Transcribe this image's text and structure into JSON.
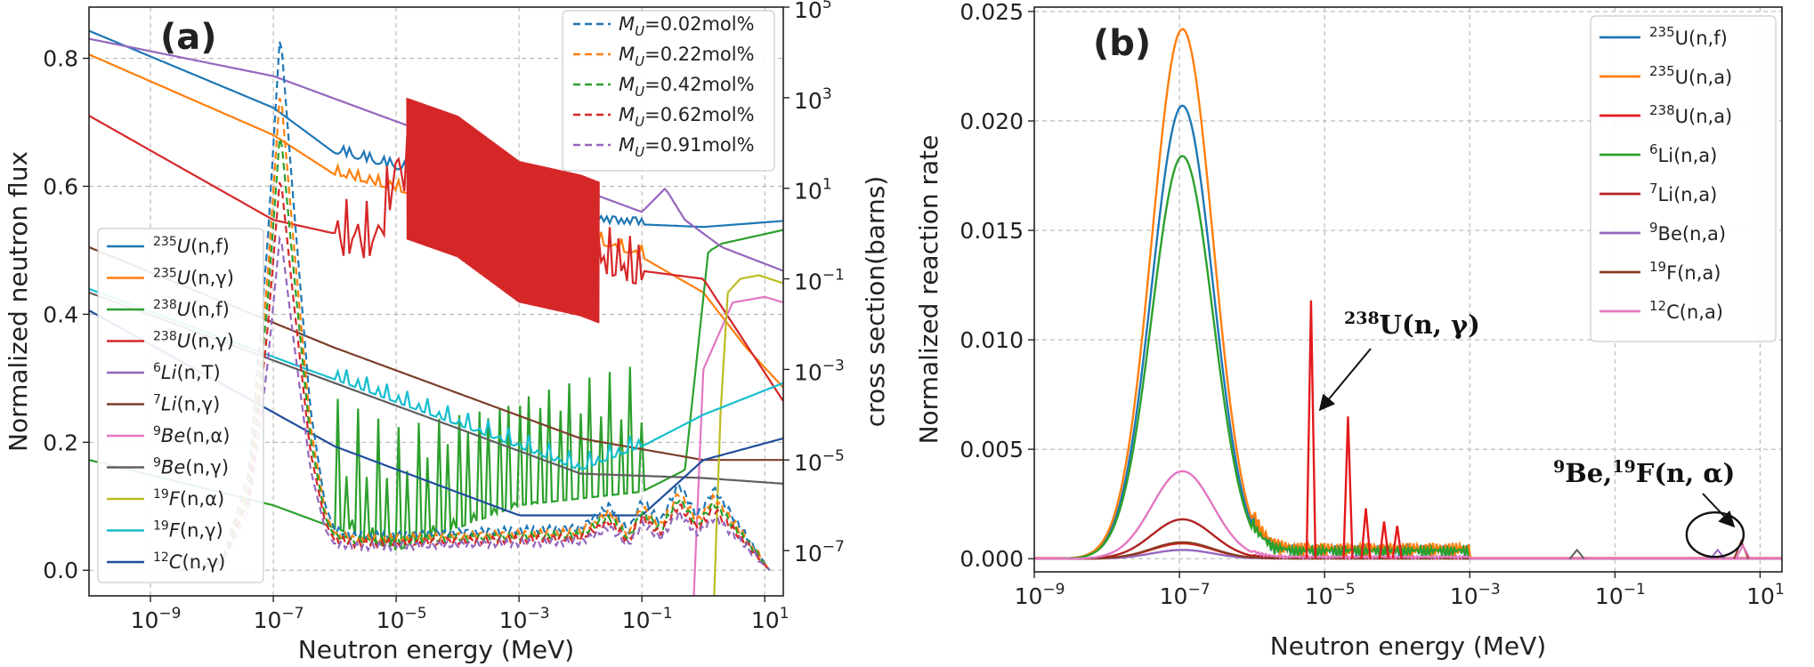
{
  "chart_data": [
    {
      "type": "line",
      "panel_label": "(a)",
      "xlabel": "Neutron energy (MeV)",
      "ylabel": "Normalized neutron flux",
      "ylabel_right": "cross section(barns)",
      "xscale": "log",
      "xlim": [
        1e-10,
        20
      ],
      "ylim": [
        -0.04,
        0.88
      ],
      "y2scale": "log",
      "y2lim": [
        1e-08,
        100000.0
      ],
      "grid": true,
      "x_ticks": [
        {
          "value": 1e-09,
          "base": "10",
          "exp": "−9"
        },
        {
          "value": 1e-07,
          "base": "10",
          "exp": "−7"
        },
        {
          "value": 1e-05,
          "base": "10",
          "exp": "−5"
        },
        {
          "value": 0.001,
          "base": "10",
          "exp": "−3"
        },
        {
          "value": 0.1,
          "base": "10",
          "exp": "−1"
        },
        {
          "value": 10,
          "base": "10",
          "exp": "1"
        }
      ],
      "y_ticks": [
        {
          "value": 0.0,
          "label": "0.0"
        },
        {
          "value": 0.2,
          "label": "0.2"
        },
        {
          "value": 0.4,
          "label": "0.4"
        },
        {
          "value": 0.6,
          "label": "0.6"
        },
        {
          "value": 0.8,
          "label": "0.8"
        }
      ],
      "y2_ticks": [
        {
          "value": 100000.0,
          "base": "10",
          "exp": "5"
        },
        {
          "value": 1000.0,
          "base": "10",
          "exp": "3"
        },
        {
          "value": 10.0,
          "base": "10",
          "exp": "1"
        },
        {
          "value": 0.1,
          "base": "10",
          "exp": "−1"
        },
        {
          "value": 0.001,
          "base": "10",
          "exp": "−3"
        },
        {
          "value": 1e-05,
          "base": "10",
          "exp": "−5"
        },
        {
          "value": 1e-07,
          "base": "10",
          "exp": "−7"
        }
      ],
      "flux_series": [
        {
          "name": "M_U=0.02mol%",
          "prefix": "M",
          "sub": "U",
          "suffix": "=0.02mol%",
          "color": "#1f77b4",
          "scale": 0.845
        },
        {
          "name": "M_U=0.22mol%",
          "prefix": "M",
          "sub": "U",
          "suffix": "=0.22mol%",
          "color": "#ff7f0e",
          "scale": 0.755
        },
        {
          "name": "M_U=0.42mol%",
          "prefix": "M",
          "sub": "U",
          "suffix": "=0.42mol%",
          "color": "#2ca02c",
          "scale": 0.69
        },
        {
          "name": "M_U=0.62mol%",
          "prefix": "M",
          "sub": "U",
          "suffix": "=0.62mol%",
          "color": "#d62728",
          "scale": 0.62
        },
        {
          "name": "M_U=0.91mol%",
          "prefix": "M",
          "sub": "U",
          "suffix": "=0.91mol%",
          "color": "#9467bd",
          "scale": 0.53
        }
      ],
      "flux_shape": {
        "x": [
          3e-09,
          1.5e-08,
          4e-08,
          8e-08,
          1.3e-07,
          2e-07,
          4e-07,
          7e-07,
          1e-06,
          2e-06,
          1e-05,
          0.0001,
          0.001,
          0.01,
          0.03,
          0.06,
          0.1,
          0.2,
          0.4,
          0.8,
          1.5,
          3,
          6,
          12
        ],
        "y": [
          0.0,
          0.02,
          0.18,
          0.6,
          1.0,
          0.72,
          0.3,
          0.12,
          0.075,
          0.064,
          0.065,
          0.07,
          0.074,
          0.078,
          0.12,
          0.07,
          0.13,
          0.09,
          0.16,
          0.1,
          0.15,
          0.1,
          0.05,
          0.0
        ]
      },
      "cross_section_series": [
        {
          "label_pre": "235",
          "label_mid": "U",
          "label_post": "(n,f)",
          "color": "#1f77b4",
          "x": [
            1e-10,
            1e-07,
            1e-06,
            0.01,
            0.03,
            1,
            20
          ],
          "y": [
            30000.0,
            600,
            60,
            2.5,
            1.7,
            1.4,
            1.9
          ]
        },
        {
          "label_pre": "235",
          "label_mid": "U",
          "label_post": "(n,γ)",
          "color": "#ff7f0e",
          "x": [
            1e-10,
            1e-07,
            1e-06,
            0.01,
            0.1,
            1,
            5,
            20
          ],
          "y": [
            9000,
            150,
            20,
            0.8,
            0.3,
            0.05,
            0.003,
            0.0004
          ]
        },
        {
          "label_pre": "238",
          "label_mid": "U",
          "label_post": "(n,f)",
          "color": "#2ca02c",
          "x": [
            1e-10,
            1e-07,
            1e-05,
            0.001,
            0.1,
            0.5,
            0.9,
            1.2,
            2,
            20
          ],
          "y": [
            1e-05,
            1e-06,
            1e-07,
            1e-06,
            2e-06,
            6e-06,
            0.01,
            0.4,
            0.6,
            1.2
          ]
        },
        {
          "label_pre": "238",
          "label_mid": "U",
          "label_post": "(n,γ)",
          "color": "#d62728",
          "x": [
            1e-10,
            1e-07,
            1e-06,
            5e-06,
            1e-05,
            0.0001,
            0.001,
            0.01,
            0.1,
            1,
            20
          ],
          "y": [
            400,
            2,
            1,
            0.8,
            30,
            10,
            1,
            0.5,
            0.15,
            0.1,
            0.0002
          ]
        },
        {
          "label_pre": "6",
          "label_mid": "Li",
          "label_post": "(n,T)",
          "color": "#9467bd",
          "x": [
            1e-10,
            1e-07,
            1e-05,
            0.001,
            0.1,
            0.24,
            0.5,
            2,
            20
          ],
          "y": [
            20000.0,
            3000,
            300,
            30,
            3,
            10,
            2,
            0.5,
            0.15
          ]
        },
        {
          "label_pre": "7",
          "label_mid": "Li",
          "label_post": "(n,γ)",
          "color": "#7b3f2b",
          "x": [
            1e-10,
            1e-06,
            0.0001,
            0.01,
            1,
            20
          ],
          "y": [
            0.5,
            0.003,
            0.0003,
            3e-05,
            1e-05,
            1e-05
          ]
        },
        {
          "label_pre": "9",
          "label_mid": "Be",
          "label_post": "(n,α)",
          "color": "#e377c2",
          "x": [
            0.7,
            1,
            3,
            10,
            20
          ],
          "y": [
            1e-08,
            0.001,
            0.03,
            0.04,
            0.03
          ]
        },
        {
          "label_pre": "9",
          "label_mid": "Be",
          "label_post": "(n,γ)",
          "color": "#5f5f5f",
          "x": [
            1e-10,
            1e-06,
            0.0001,
            0.01,
            1,
            20
          ],
          "y": [
            0.05,
            0.0005,
            5e-05,
            5e-06,
            4e-06,
            3e-06
          ]
        },
        {
          "label_pre": "19",
          "label_mid": "F",
          "label_post": "(n,α)",
          "color": "#bcbd22",
          "x": [
            1.5,
            1.9,
            2.5,
            4,
            8,
            20
          ],
          "y": [
            1e-08,
            0.0001,
            0.05,
            0.1,
            0.12,
            0.08
          ]
        },
        {
          "label_pre": "19",
          "label_mid": "F",
          "label_post": "(n,γ)",
          "color": "#17becf",
          "x": [
            1e-10,
            1e-06,
            0.0001,
            0.01,
            0.1,
            1,
            20
          ],
          "y": [
            0.06,
            0.0006,
            6e-05,
            6e-06,
            2e-05,
            0.0001,
            0.0005
          ]
        },
        {
          "label_pre": "12",
          "label_mid": "C",
          "label_post": "(n,γ)",
          "color": "#1f4e9c",
          "x": [
            1e-10,
            1e-06,
            0.001,
            0.1,
            1,
            20
          ],
          "y": [
            0.02,
            2e-05,
            6e-07,
            6e-07,
            1e-05,
            3e-05
          ]
        }
      ]
    },
    {
      "type": "line",
      "panel_label": "(b)",
      "xlabel": "Neutron energy (MeV)",
      "ylabel": "Normalized reaction rate",
      "xscale": "log",
      "xlim": [
        1e-09,
        20
      ],
      "ylim": [
        -0.0006,
        0.0252
      ],
      "grid": true,
      "x_ticks": [
        {
          "value": 1e-09,
          "base": "10",
          "exp": "−9"
        },
        {
          "value": 1e-07,
          "base": "10",
          "exp": "−7"
        },
        {
          "value": 1e-05,
          "base": "10",
          "exp": "−5"
        },
        {
          "value": 0.001,
          "base": "10",
          "exp": "−3"
        },
        {
          "value": 0.1,
          "base": "10",
          "exp": "−1"
        },
        {
          "value": 10,
          "base": "10",
          "exp": "1"
        }
      ],
      "y_ticks": [
        {
          "value": 0.0,
          "label": "0.000"
        },
        {
          "value": 0.005,
          "label": "0.005"
        },
        {
          "value": 0.01,
          "label": "0.010"
        },
        {
          "value": 0.015,
          "label": "0.015"
        },
        {
          "value": 0.02,
          "label": "0.020"
        },
        {
          "value": 0.025,
          "label": "0.025"
        }
      ],
      "series": [
        {
          "label_pre": "235",
          "label_mid": "U",
          "label_post": "(n,f)",
          "color": "#1f77b4",
          "peak": 0.0207
        },
        {
          "label_pre": "235",
          "label_mid": "U",
          "label_post": "(n,a)",
          "color": "#ff7f0e",
          "peak": 0.0242
        },
        {
          "label_pre": "238",
          "label_mid": "U",
          "label_post": "(n,a)",
          "color": "#e31a1c",
          "peak": 0.0007
        },
        {
          "label_pre": "6",
          "label_mid": "Li",
          "label_post": "(n,a)",
          "color": "#2ca02c",
          "peak": 0.0184
        },
        {
          "label_pre": "7",
          "label_mid": "Li",
          "label_post": "(n,a)",
          "color": "#b22222",
          "peak": 0.0018
        },
        {
          "label_pre": "9",
          "label_mid": "Be",
          "label_post": "(n,a)",
          "color": "#9467bd",
          "peak": 0.0004
        },
        {
          "label_pre": "19",
          "label_mid": "F",
          "label_post": "(n,a)",
          "color": "#8c3a22",
          "peak": 0.00075
        },
        {
          "label_pre": "12",
          "label_mid": "C",
          "label_post": "(n,a)",
          "color": "#e377c2",
          "peak": 0.004
        }
      ],
      "resonance_peaks": [
        {
          "x": 6.5e-06,
          "y": 0.0118
        },
        {
          "x": 2.1e-05,
          "y": 0.0065
        },
        {
          "x": 3.7e-05,
          "y": 0.0023
        },
        {
          "x": 6.6e-05,
          "y": 0.0017
        },
        {
          "x": 0.0001,
          "y": 0.0015
        }
      ],
      "annotations": [
        {
          "pre": "238",
          "mid": "U(n, γ)",
          "target_x": 6.5e-06,
          "target_y": 0.0068
        },
        {
          "pre": "9",
          "mid": "Be,",
          "pre2": "19",
          "mid2": "F(n, α)",
          "target_x": 2.4,
          "target_y": 0.0011
        }
      ]
    }
  ]
}
